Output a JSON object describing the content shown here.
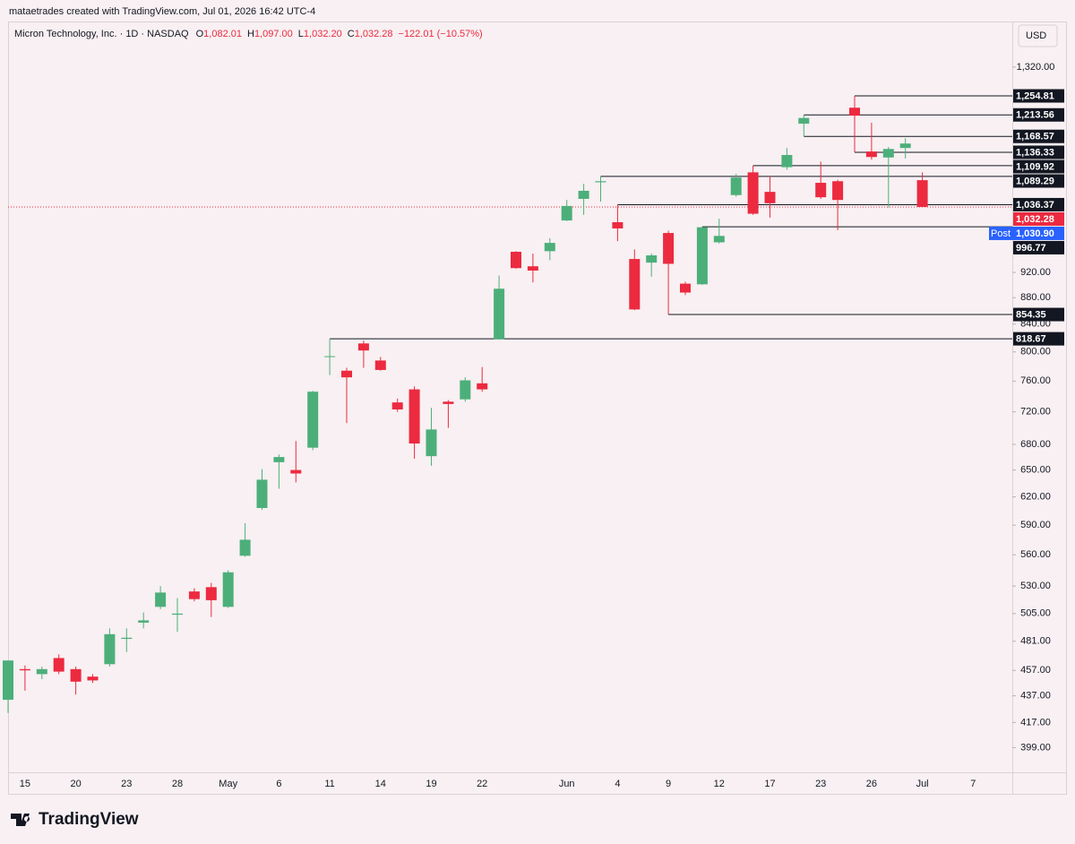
{
  "header": "mataetrades created with TradingView.com, Jul 01, 2026 16:42 UTC-4",
  "brand": "TradingView",
  "currency": "USD",
  "chart_data": {
    "type": "candlestick",
    "title": "Micron Technology, Inc. · 1D · NASDAQ",
    "legend": {
      "fields": [
        {
          "name": "O",
          "value": "1,082.01"
        },
        {
          "name": "H",
          "value": "1,097.00"
        },
        {
          "name": "L",
          "value": "1,032.20"
        },
        {
          "name": "C",
          "value": "1,032.28"
        }
      ],
      "change": "−122.01 (−10.57%)"
    },
    "categories": [
      null,
      "15",
      null,
      null,
      "20",
      null,
      null,
      "23",
      null,
      null,
      "28",
      null,
      null,
      "May",
      null,
      null,
      "6",
      null,
      null,
      "11",
      null,
      null,
      "14",
      null,
      null,
      "19",
      null,
      null,
      "22",
      null,
      null,
      null,
      null,
      "Jun",
      null,
      null,
      "4",
      null,
      null,
      "9",
      null,
      null,
      "12",
      null,
      null,
      "17",
      null,
      null,
      "23",
      null,
      null,
      "26",
      null,
      null,
      "Jul",
      null,
      null,
      "7"
    ],
    "open": [
      434,
      458,
      454,
      467,
      458,
      452,
      462,
      483,
      497,
      511,
      504,
      525,
      529,
      511,
      559,
      608,
      659,
      650,
      676,
      793,
      774,
      812,
      788,
      732,
      749,
      666,
      733,
      736,
      757,
      818,
      954,
      930,
      955,
      1008,
      1047,
      1078,
      1005,
      942,
      936,
      986,
      902,
      901,
      970,
      1054,
      1097,
      1060,
      1107,
      1195,
      1077,
      1080,
      1229,
      1138,
      1126,
      1145,
      1082.01,
      null,
      null,
      null
    ],
    "high": [
      465,
      461,
      460,
      470,
      460,
      454,
      492,
      492,
      506,
      530,
      519,
      528,
      533,
      545,
      592,
      651,
      668,
      684,
      747,
      818.67,
      778,
      816,
      793,
      737,
      753,
      725,
      735,
      765,
      779,
      915,
      955,
      951,
      977,
      1045,
      1075,
      1089.29,
      1036.37,
      958,
      951,
      990,
      905,
      996.77,
      1011,
      1094,
      1109.92,
      1090,
      1145,
      1213.56,
      1118,
      1083,
      1254.81,
      1197,
      1147,
      1165,
      1097,
      null,
      null,
      null
    ],
    "low": [
      424,
      441,
      450,
      454,
      438,
      447,
      460,
      472,
      492,
      509,
      489,
      516,
      502,
      510,
      558,
      606,
      629,
      636,
      673,
      768,
      706,
      778,
      774,
      720,
      663,
      655,
      700,
      733,
      746,
      818,
      926,
      904,
      940,
      1007,
      1018,
      1042,
      972,
      861,
      913,
      854.35,
      884,
      900,
      968,
      1051,
      1018,
      1013,
      1102,
      1168.57,
      1047,
      991,
      1136.33,
      1122,
      1031,
      1124,
      1032.2,
      null,
      null,
      null
    ],
    "close": [
      465,
      457,
      458,
      456,
      448,
      449,
      487,
      484,
      499,
      524,
      505,
      518,
      517,
      543,
      575,
      639,
      665,
      646,
      746,
      794,
      765,
      802,
      775,
      723,
      681,
      698,
      730,
      761,
      749,
      894,
      927,
      923,
      969,
      1034,
      1062,
      1080,
      994,
      862,
      948,
      934,
      888,
      996,
      981,
      1087,
      1020,
      1039,
      1131,
      1207,
      1050,
      1045,
      1212,
      1127,
      1143,
      1154,
      1032.28,
      null,
      null,
      null
    ],
    "up_color": "#4caf7a",
    "down_color": "#ec2a40",
    "log_scale": true,
    "ylim": [
      382,
      1362
    ],
    "yticks": [
      {
        "value": 1320,
        "label": "1,320.00"
      },
      {
        "value": 920,
        "label": "920.00"
      },
      {
        "value": 880,
        "label": "880.00"
      },
      {
        "value": 840,
        "label": "840.00"
      },
      {
        "value": 800,
        "label": "800.00"
      },
      {
        "value": 760,
        "label": "760.00"
      },
      {
        "value": 720,
        "label": "720.00"
      },
      {
        "value": 680,
        "label": "680.00"
      },
      {
        "value": 650,
        "label": "650.00"
      },
      {
        "value": 620,
        "label": "620.00"
      },
      {
        "value": 590,
        "label": "590.00"
      },
      {
        "value": 560,
        "label": "560.00"
      },
      {
        "value": 530,
        "label": "530.00"
      },
      {
        "value": 505,
        "label": "505.00"
      },
      {
        "value": 481,
        "label": "481.00"
      },
      {
        "value": 457,
        "label": "457.00"
      },
      {
        "value": 437,
        "label": "437.00"
      },
      {
        "value": 417,
        "label": "417.00"
      },
      {
        "value": 399,
        "label": "399.00"
      }
    ],
    "price_tags": [
      {
        "value": 1254.81,
        "label": "1,254.81",
        "color": "#131722",
        "line_style": "solid"
      },
      {
        "value": 1213.56,
        "label": "1,213.56",
        "color": "#131722",
        "line_style": "solid"
      },
      {
        "value": 1168.57,
        "label": "1,168.57",
        "color": "#131722",
        "line_style": "solid"
      },
      {
        "value": 1136.33,
        "label": "1,136.33",
        "color": "#131722",
        "line_style": "solid"
      },
      {
        "value": 1109.92,
        "label": "1,109.92",
        "color": "#131722",
        "line_style": "solid"
      },
      {
        "value": 1089.29,
        "label": "1,089.29",
        "color": "#131722",
        "line_style": "solid"
      },
      {
        "value": 1036.37,
        "label": "1,036.37",
        "color": "#131722",
        "line_style": "solid"
      },
      {
        "value": 1032.28,
        "label": "1,032.28",
        "color": "#ec2a40",
        "line_style": "dotted"
      },
      {
        "name": "Post",
        "value": 1030.9,
        "label": "1,030.90",
        "color": "#2962ff"
      },
      {
        "value": 996.77,
        "label": "996.77",
        "color": "#131722",
        "line_style": "solid"
      },
      {
        "value": 854.35,
        "label": "854.35",
        "color": "#131722",
        "line_style": "solid"
      },
      {
        "value": 818.67,
        "label": "818.67",
        "color": "#131722",
        "line_style": "solid"
      }
    ]
  }
}
